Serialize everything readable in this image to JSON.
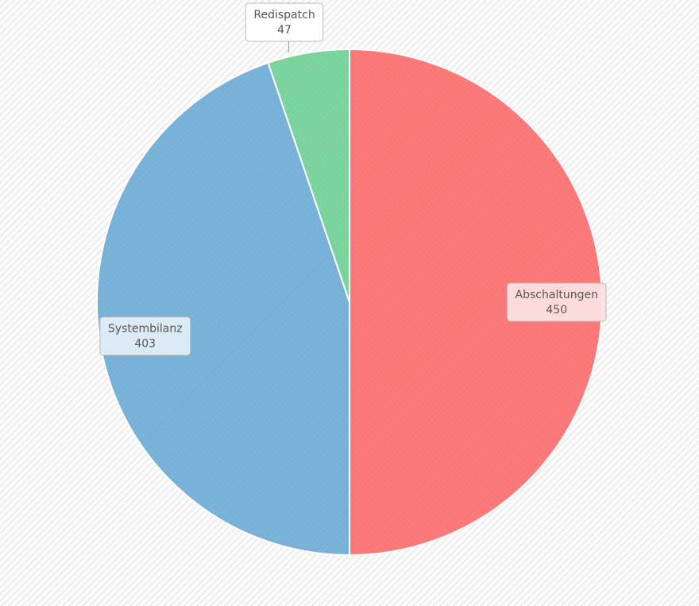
{
  "chart_data": {
    "type": "pie",
    "categories": [
      "Abschaltungen",
      "Systembilanz",
      "Redispatch"
    ],
    "values": [
      450,
      403,
      47
    ],
    "colors": [
      "#fd7a7a",
      "#7ab3da",
      "#7cd59e"
    ],
    "label_fills": [
      "#fde0e0",
      "#e0edf7",
      "#ffffff"
    ]
  }
}
